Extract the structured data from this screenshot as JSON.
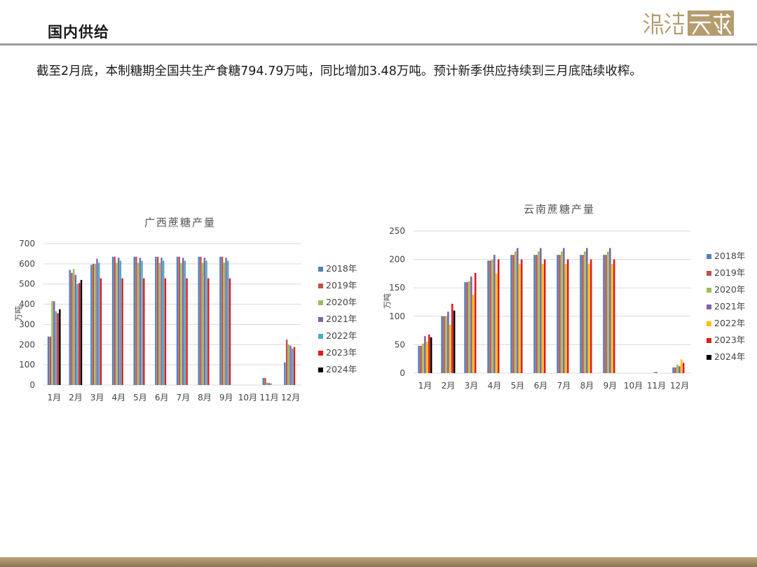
{
  "header": {
    "title": "国内供给"
  },
  "logo": {
    "alt": "瀚澄 天成"
  },
  "body": {
    "text": "截至2月底，本制糖期全国共生产食糖794.79万吨，同比增加3.48万吨。预计新季供应持续到三月底陆续收榨。"
  },
  "colors": {
    "2018年": "#4e81bd",
    "2019年": "#c0504d",
    "2020年": "#9bbb59",
    "2021年": "#8064a2",
    "2022年": "#4bacc6",
    "2022年_yn": "#ffc000",
    "2023年": "#e31a1c",
    "2024年": "#000000",
    "grid": "#d9d9d9"
  },
  "chart_data": [
    {
      "type": "bar",
      "title": "广西蔗糖产量",
      "ylabel": "万吨",
      "ylim": [
        0,
        700
      ],
      "yticks": [
        0,
        100,
        200,
        300,
        400,
        500,
        600,
        700
      ],
      "categories": [
        "1月",
        "2月",
        "3月",
        "4月",
        "5月",
        "6月",
        "7月",
        "8月",
        "9月",
        "10月",
        "11月",
        "12月"
      ],
      "series": [
        {
          "name": "2018年",
          "color_key": "2018年",
          "values": [
            240,
            570,
            595,
            635,
            635,
            635,
            635,
            635,
            635,
            null,
            35,
            112
          ]
        },
        {
          "name": "2019年",
          "color_key": "2019年",
          "values": [
            240,
            555,
            600,
            635,
            635,
            635,
            635,
            635,
            635,
            null,
            35,
            225
          ]
        },
        {
          "name": "2020年",
          "color_key": "2020年",
          "values": [
            415,
            575,
            600,
            605,
            605,
            605,
            605,
            605,
            605,
            null,
            12,
            200
          ]
        },
        {
          "name": "2021年",
          "color_key": "2021年",
          "values": [
            415,
            545,
            625,
            630,
            630,
            630,
            630,
            630,
            630,
            null,
            10,
            195
          ]
        },
        {
          "name": "2022年",
          "color_key": "2022年",
          "values": [
            365,
            500,
            605,
            615,
            615,
            615,
            615,
            615,
            615,
            null,
            8,
            180
          ]
        },
        {
          "name": "2023年",
          "color_key": "2023年",
          "values": [
            355,
            505,
            528,
            528,
            528,
            528,
            528,
            528,
            528,
            null,
            null,
            188
          ]
        },
        {
          "name": "2024年",
          "color_key": "2024年",
          "values": [
            375,
            520,
            null,
            null,
            null,
            null,
            null,
            null,
            null,
            null,
            null,
            null
          ]
        }
      ],
      "legend_position": "right"
    },
    {
      "type": "bar",
      "title": "云南蔗糖产量",
      "ylabel": "万吨",
      "ylim": [
        0,
        250
      ],
      "yticks": [
        0,
        50,
        100,
        150,
        200,
        250
      ],
      "categories": [
        "1月",
        "2月",
        "3月",
        "4月",
        "5月",
        "6月",
        "7月",
        "8月",
        "9月",
        "10月",
        "11月",
        "12月"
      ],
      "series": [
        {
          "name": "2018年",
          "color_key": "2018年",
          "values": [
            48,
            100,
            160,
            198,
            208,
            208,
            208,
            208,
            208,
            null,
            null,
            10
          ]
        },
        {
          "name": "2019年",
          "color_key": "2019年",
          "values": [
            48,
            100,
            160,
            198,
            208,
            208,
            208,
            208,
            208,
            null,
            null,
            10
          ]
        },
        {
          "name": "2020年",
          "color_key": "2020年",
          "values": [
            52,
            100,
            162,
            200,
            214,
            214,
            214,
            214,
            214,
            null,
            2,
            15
          ]
        },
        {
          "name": "2021年",
          "color_key": "2021年",
          "values": [
            65,
            108,
            170,
            208,
            220,
            220,
            220,
            220,
            220,
            null,
            2,
            12
          ]
        },
        {
          "name": "2022年",
          "color_key": "2022年_yn",
          "values": [
            55,
            85,
            138,
            175,
            192,
            192,
            192,
            192,
            192,
            null,
            null,
            24
          ]
        },
        {
          "name": "2023年",
          "color_key": "2023年",
          "values": [
            68,
            122,
            176,
            200,
            200,
            200,
            200,
            200,
            200,
            null,
            null,
            18
          ]
        },
        {
          "name": "2024年",
          "color_key": "2024年",
          "values": [
            63,
            110,
            null,
            null,
            null,
            null,
            null,
            null,
            null,
            null,
            null,
            null
          ]
        }
      ],
      "legend_position": "right"
    }
  ]
}
